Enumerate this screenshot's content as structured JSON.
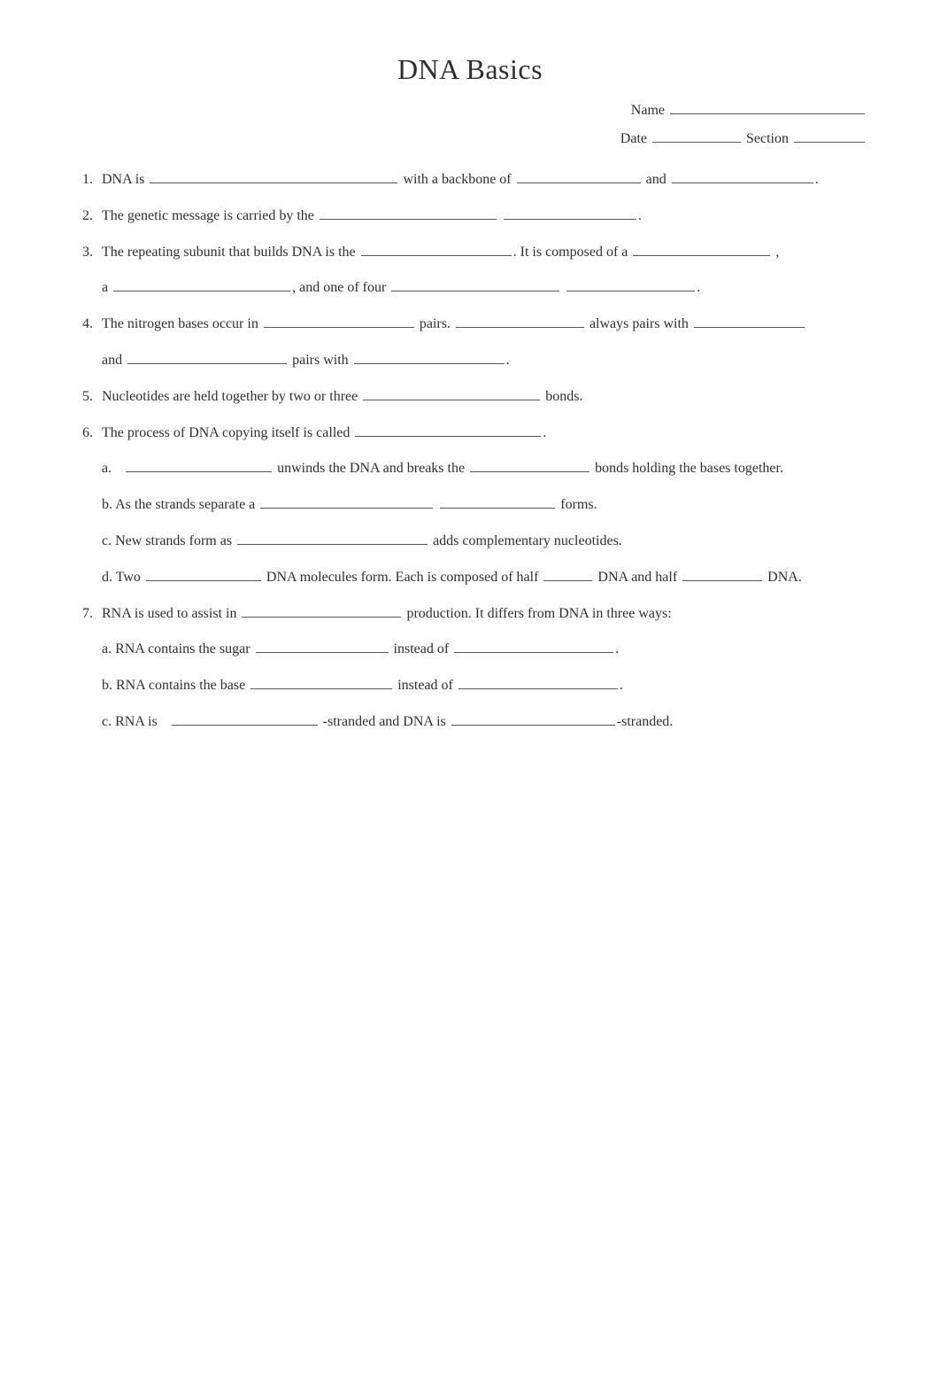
{
  "title": "DNA Basics",
  "header": {
    "name_label": "Name",
    "date_label": "Date",
    "section_label": "Section"
  },
  "blank_widths": {
    "name": 220,
    "date": 100,
    "section": 80,
    "q1_a": 280,
    "q1_b": 140,
    "q1_c": 160,
    "q2_a": 200,
    "q2_b": 150,
    "q3_a": 170,
    "q3_b": 155,
    "q3_c": 200,
    "q3_d": 190,
    "q3_e": 145,
    "q4_a": 170,
    "q4_b": 145,
    "q4_c": 125,
    "q4_d": 180,
    "q4_e": 170,
    "q5_a": 200,
    "q6_a": 210,
    "q6a_a": 165,
    "q6a_b": 135,
    "q6b_a": 195,
    "q6b_b": 130,
    "q6c_a": 215,
    "q6d_a": 130,
    "q6d_b": 55,
    "q6d_c": 90,
    "q7_a": 180,
    "q7a_a": 150,
    "q7a_b": 180,
    "q7b_a": 160,
    "q7b_b": 180,
    "q7c_a": 165,
    "q7c_b": 185
  },
  "text": {
    "q1_p1": "DNA is",
    "q1_p2": "with a backbone of",
    "q1_p3": "and",
    "q1_p4": ".",
    "q2_p1": "The genetic message is carried by the",
    "q2_p2": ".",
    "q3_p1": "The repeating subunit that builds DNA is the",
    "q3_p2": ". It is composed of a",
    "q3_p3": ",",
    "q3_p4": "a",
    "q3_p5": ", and one of four",
    "q3_p6": ".",
    "q4_p1": "The nitrogen bases occur in",
    "q4_p2": "pairs.",
    "q4_p3": "always pairs with",
    "q4_p4": "and",
    "q4_p5": "pairs with",
    "q4_p6": ".",
    "q5_p1": "Nucleotides are held together by two or three",
    "q5_p2": "bonds.",
    "q6_p1": "The process of DNA copying itself is called",
    "q6_p2": ".",
    "q6a_p1": "a.",
    "q6a_p2": "unwinds the DNA and breaks the",
    "q6a_p3": "bonds holding the bases together.",
    "q6b_p1": "b. As the strands separate a",
    "q6b_p2": "forms.",
    "q6c_p1": "c. New strands form as",
    "q6c_p2": "adds complementary nucleotides.",
    "q6d_p1": "d. Two",
    "q6d_p2": "DNA molecules form. Each is composed of half",
    "q6d_p3": "DNA and half",
    "q6d_p4": "DNA.",
    "q7_p1": "RNA is used to assist in",
    "q7_p2": "production. It differs from DNA in three ways:",
    "q7a_p1": "a. RNA contains the sugar",
    "q7a_p2": "instead of",
    "q7a_p3": ".",
    "q7b_p1": "b. RNA contains the base",
    "q7b_p2": "instead of",
    "q7b_p3": ".",
    "q7c_p1": "c. RNA is",
    "q7c_p2": "-stranded and DNA is",
    "q7c_p3": "-stranded."
  }
}
